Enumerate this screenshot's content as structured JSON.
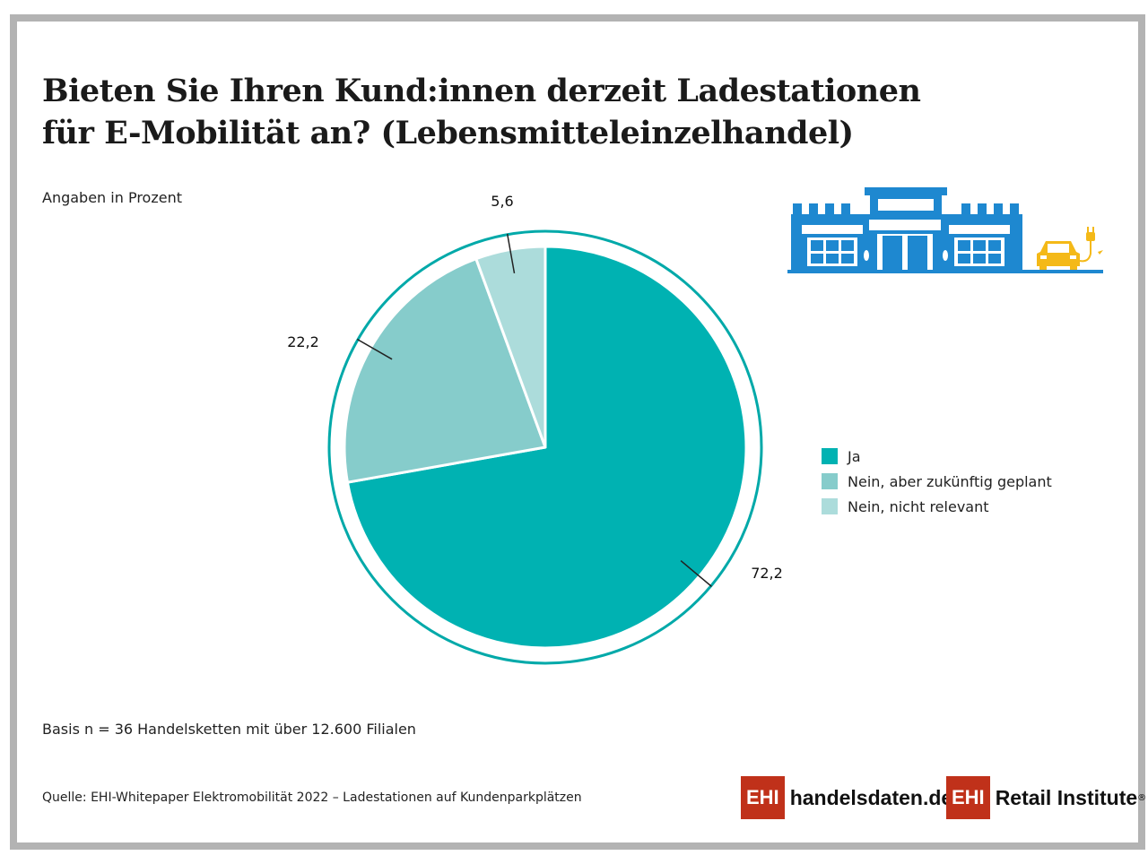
{
  "title_lines": [
    "Bieten Sie Ihren Kund:innen derzeit Ladestationen",
    "für E-Mobilität an? (Lebensmitteleinzelhandel)"
  ],
  "subtitle": "Angaben in Prozent",
  "basis": "Basis n = 36 Handelsketten mit über 12.600 Filialen",
  "source": "Quelle: EHI-Whitepaper Elektromobilität 2022 – Ladestationen auf Kundenparkplätzen",
  "logos": {
    "handelsdaten_box": "EHI",
    "handelsdaten_text": "handelsdaten.de",
    "retail_box": "EHI",
    "retail_text": "Retail Institute",
    "registered": "®"
  },
  "colors": {
    "ja": "#00b2b2",
    "geplant": "#86cccb",
    "nicht_relevant": "#acdcdb",
    "ring": "#00a9a9",
    "building": "#1e88d0",
    "car": "#f4b918"
  },
  "icons": [
    "store-building-icon",
    "electric-car-icon",
    "charging-plug-icon"
  ],
  "chart_data": {
    "type": "pie",
    "title": "Bieten Sie Ihren Kund:innen derzeit Ladestationen für E-Mobilität an? (Lebensmitteleinzelhandel)",
    "unit": "Angaben in Prozent",
    "legend_position": "right",
    "slices": [
      {
        "label": "Ja",
        "value": 72.2,
        "value_label": "72,2",
        "color": "#00b2b2"
      },
      {
        "label": "Nein, aber zukünftig geplant",
        "value": 22.2,
        "value_label": "22,2",
        "color": "#86cccb"
      },
      {
        "label": "Nein, nicht relevant",
        "value": 5.6,
        "value_label": "5,6",
        "color": "#acdcdb"
      }
    ]
  }
}
